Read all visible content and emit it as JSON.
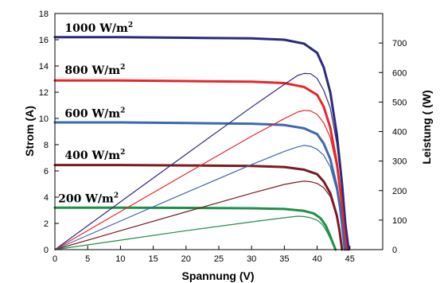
{
  "chart_data": {
    "type": "line",
    "xlabel": "Spannung (V)",
    "ylabel_left": "Strom (A)",
    "ylabel_right": "Leistung ( (W)",
    "xlim": [
      0,
      50
    ],
    "ylim_left": [
      0,
      18
    ],
    "ylim_right": [
      0,
      800
    ],
    "x_ticks": [
      "0",
      "5",
      "10",
      "15",
      "20",
      "25",
      "30",
      "35",
      "40",
      "45"
    ],
    "y_left_ticks": [
      "0",
      "2",
      "4",
      "6",
      "8",
      "10",
      "12",
      "14",
      "16",
      "18"
    ],
    "y_right_ticks": [
      "0",
      "100",
      "200",
      "300",
      "400",
      "500",
      "600",
      "700"
    ],
    "grid": false,
    "annotations": [
      {
        "base": "1000 W/m",
        "sup": "2",
        "x": 1.5,
        "y": 16.6
      },
      {
        "base": "800 W/m",
        "sup": "2",
        "x": 1.5,
        "y": 13.4
      },
      {
        "base": "600 W/m",
        "sup": "2",
        "x": 1.5,
        "y": 10.1
      },
      {
        "base": "400 W/m",
        "sup": "2",
        "x": 1.5,
        "y": 6.9
      },
      {
        "base": "200 W/m",
        "sup": "2",
        "x": 0.5,
        "y": 3.6
      }
    ],
    "series": [
      {
        "color": "#2b2b7a",
        "axis": "left",
        "kind": "current",
        "x": [
          0,
          10,
          20,
          30,
          35,
          38,
          40,
          41,
          42,
          43,
          43.8,
          44.3,
          44.8
        ],
        "y": [
          16.2,
          16.2,
          16.15,
          16.1,
          16.0,
          15.7,
          15.0,
          13.9,
          12.0,
          8.8,
          5.0,
          2.0,
          0
        ]
      },
      {
        "color": "#e8262a",
        "axis": "left",
        "kind": "current",
        "x": [
          0,
          10,
          20,
          30,
          35,
          38,
          40,
          41,
          42,
          43,
          43.7,
          44.1,
          44.5
        ],
        "y": [
          12.9,
          12.9,
          12.85,
          12.8,
          12.7,
          12.4,
          11.8,
          10.9,
          9.3,
          6.6,
          3.8,
          1.5,
          0
        ]
      },
      {
        "color": "#3d67b0",
        "axis": "left",
        "kind": "current",
        "x": [
          0,
          10,
          20,
          30,
          35,
          38,
          40,
          41,
          42,
          43,
          43.5,
          43.9,
          44.2
        ],
        "y": [
          9.7,
          9.7,
          9.65,
          9.6,
          9.5,
          9.25,
          8.8,
          8.1,
          6.9,
          4.8,
          3.2,
          1.5,
          0
        ]
      },
      {
        "color": "#7b1a1f",
        "axis": "left",
        "kind": "current",
        "x": [
          0,
          10,
          20,
          30,
          35,
          38,
          40,
          41,
          42,
          43,
          43.4,
          43.8
        ],
        "y": [
          6.45,
          6.45,
          6.42,
          6.38,
          6.3,
          6.1,
          5.75,
          5.2,
          4.3,
          2.6,
          1.5,
          0
        ]
      },
      {
        "color": "#1f8f4a",
        "axis": "left",
        "kind": "current",
        "x": [
          0,
          10,
          20,
          30,
          35,
          38,
          39.5,
          40.5,
          41.3,
          41.9,
          42.4,
          42.8
        ],
        "y": [
          3.2,
          3.2,
          3.18,
          3.15,
          3.1,
          2.95,
          2.75,
          2.4,
          1.85,
          1.15,
          0.5,
          0
        ]
      },
      {
        "color": "#2b2b7a",
        "axis": "right",
        "kind": "power",
        "x": [
          0,
          10,
          20,
          30,
          35,
          37,
          38,
          39,
          40,
          41,
          42,
          43,
          43.8,
          44.3,
          44.8
        ],
        "y": [
          0,
          162,
          323,
          483,
          560,
          590,
          597,
          596,
          580,
          540,
          480,
          360,
          210,
          85,
          0
        ]
      },
      {
        "color": "#e8262a",
        "axis": "right",
        "kind": "power",
        "x": [
          0,
          10,
          20,
          30,
          35,
          37,
          38,
          39,
          40,
          41,
          42,
          43,
          43.7,
          44.1,
          44.5
        ],
        "y": [
          0,
          129,
          257,
          384,
          444,
          466,
          472,
          470,
          458,
          430,
          380,
          280,
          160,
          65,
          0
        ]
      },
      {
        "color": "#3d67b0",
        "axis": "right",
        "kind": "power",
        "x": [
          0,
          10,
          20,
          30,
          35,
          37,
          38,
          39,
          40,
          41,
          42,
          43,
          43.5,
          43.9,
          44.2
        ],
        "y": [
          0,
          97,
          193,
          288,
          333,
          348,
          353,
          350,
          340,
          320,
          280,
          200,
          140,
          65,
          0
        ]
      },
      {
        "color": "#7b1a1f",
        "axis": "right",
        "kind": "power",
        "x": [
          0,
          10,
          20,
          30,
          35,
          37,
          38,
          39,
          40,
          41,
          42,
          43,
          43.4,
          43.8
        ],
        "y": [
          0,
          64,
          128,
          191,
          221,
          229,
          232,
          230,
          224,
          210,
          180,
          112,
          65,
          0
        ]
      },
      {
        "color": "#1f8f4a",
        "axis": "right",
        "kind": "power",
        "x": [
          0,
          10,
          20,
          30,
          35,
          37,
          38,
          39,
          40,
          40.8,
          41.5,
          42.2,
          42.8
        ],
        "y": [
          0,
          32,
          64,
          94,
          108,
          113,
          112,
          108,
          100,
          85,
          60,
          28,
          0
        ]
      }
    ]
  }
}
